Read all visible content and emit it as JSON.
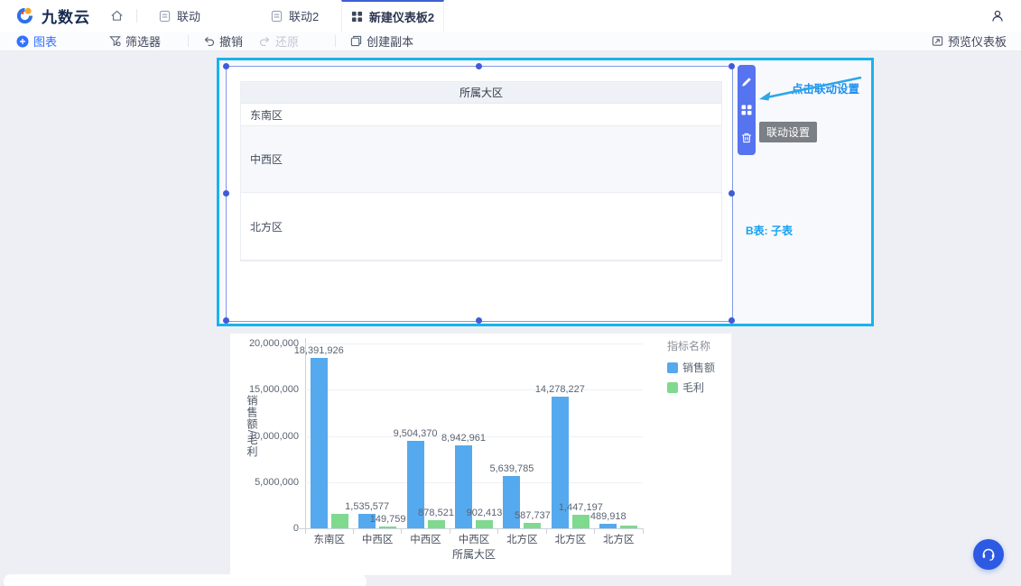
{
  "header": {
    "logo_text": "九数云",
    "tabs": [
      {
        "label": "联动"
      },
      {
        "label": "联动2"
      },
      {
        "label": "新建仪表板2"
      }
    ]
  },
  "toolbar": {
    "chart_btn": "图表",
    "filter_btn": "筛选器",
    "undo_btn": "撤销",
    "redo_btn": "还原",
    "copy_btn": "创建副本",
    "preview_btn": "预览仪表板"
  },
  "canvas": {
    "tooltip": "联动设置",
    "note": "点击联动设置",
    "b_table_label": "B表: 子表"
  },
  "table_widget": {
    "header": "所属大区",
    "rows": [
      "东南区",
      "中西区",
      "北方区"
    ]
  },
  "chart_data": {
    "type": "bar",
    "categories": [
      "东南区",
      "中西区",
      "中西区",
      "中西区",
      "北方区",
      "北方区",
      "北方区"
    ],
    "series": [
      {
        "name": "销售额",
        "color": "#55a9ee",
        "values": [
          18391926,
          1535577,
          9504370,
          8942961,
          5639785,
          14278227,
          489918
        ],
        "labels": [
          "18,391,926",
          "1,535,577",
          "9,504,370",
          "8,942,961",
          "5,639,785",
          "14,278,227",
          "489,918"
        ]
      },
      {
        "name": "毛利",
        "color": "#7fd98f",
        "values": [
          1600000,
          149759,
          878521,
          902413,
          587737,
          1447197,
          250000
        ],
        "labels": [
          "",
          "149,759",
          "878,521",
          "902,413",
          "587,737",
          "1,447,197",
          ""
        ]
      }
    ],
    "legend_title": "指标名称",
    "xlabel": "所属大区",
    "ylabel": "销售额/毛利",
    "yticks": [
      {
        "value": 0,
        "label": "0"
      },
      {
        "value": 5000000,
        "label": "5,000,000"
      },
      {
        "value": 10000000,
        "label": "10,000,000"
      },
      {
        "value": 15000000,
        "label": "15,000,000"
      },
      {
        "value": 20000000,
        "label": "20,000,000"
      }
    ],
    "ylim": [
      0,
      20000000
    ],
    "grid": true,
    "legend_position": "top-right"
  }
}
